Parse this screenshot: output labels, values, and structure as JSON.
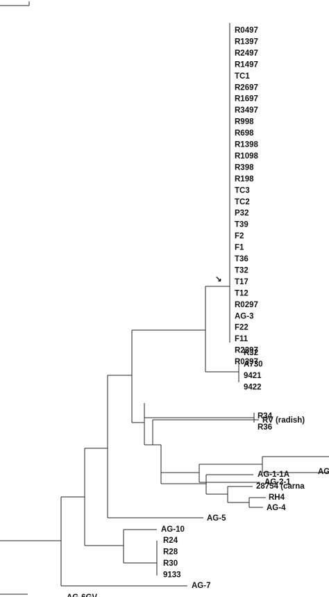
{
  "tree": {
    "arrow_glyph": "↘",
    "crown_taxa": [
      "R0497",
      "R1397",
      "R2497",
      "R1497",
      "TC1",
      "R2697",
      "R1697",
      "R3497",
      "R998",
      "R698",
      "R1398",
      "R1098",
      "R398",
      "R198",
      "TC3",
      "TC2",
      "P32",
      "T39",
      "F2",
      "F1",
      "T36",
      "T32",
      "T17",
      "T12",
      "R0297",
      "AG-3",
      "F22",
      "F11",
      "R2297",
      "R0397"
    ],
    "subclade_taxa": [
      "R32",
      "A730",
      "9421",
      "9422"
    ],
    "pair_taxa": [
      "R34",
      "R36"
    ],
    "rv_label": "RV (radish)",
    "ag_cut_label": "AG",
    "ag21_label": "AG-2-1",
    "ag11a_label": "AG-1-1A",
    "carna_label": "28754 (carna",
    "rh4_label": "RH4",
    "ag4_label": "AG-4",
    "ag5_label": "AG-5",
    "ag10_label": "AG-10",
    "ag10_group": [
      "R24",
      "R28",
      "R30",
      "9133"
    ],
    "ag7_label": "AG-7",
    "ag6_label": "AG-6GV"
  }
}
